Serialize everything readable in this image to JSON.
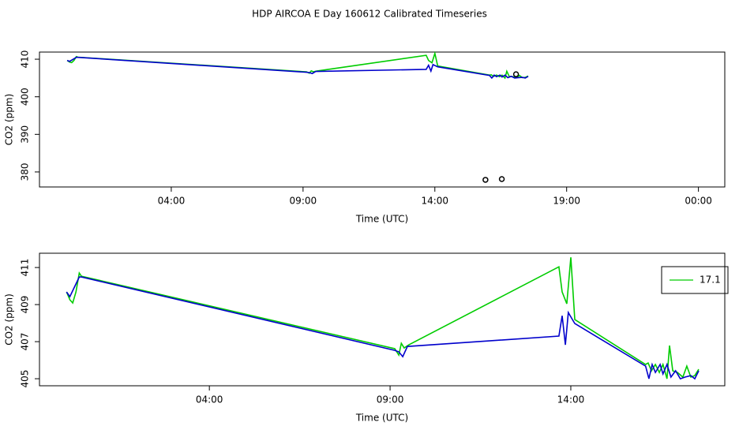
{
  "chart_data": [
    {
      "type": "line",
      "title": "HDP AIRCOA E  Day 160612  Calibrated Timeseries",
      "xlabel": "Time (UTC)",
      "ylabel": "CO2 (ppm)",
      "xlim": [
        -1,
        25
      ],
      "ylim": [
        376,
        411.9
      ],
      "xticks": [
        {
          "value": 4,
          "label": "04:00"
        },
        {
          "value": 9,
          "label": "09:00"
        },
        {
          "value": 14,
          "label": "14:00"
        },
        {
          "value": 19,
          "label": "19:00"
        },
        {
          "value": 24,
          "label": "00:00"
        }
      ],
      "yticks": [
        380,
        390,
        400,
        410
      ],
      "series": [
        {
          "color": "#00cc00",
          "x": [
            0.05,
            0.14,
            0.22,
            0.31,
            0.4,
            0.46,
            9.13,
            9.24,
            9.31,
            9.39,
            9.52,
            13.67,
            13.76,
            13.89,
            14.0,
            14.11,
            16.07,
            16.14,
            16.23,
            16.34,
            16.45,
            16.55,
            16.66,
            16.73,
            16.82,
            16.95,
            17.1,
            17.21,
            17.32,
            17.43,
            17.54
          ],
          "values": [
            409.68,
            409.26,
            409.09,
            409.68,
            410.7,
            410.53,
            406.62,
            406.28,
            406.91,
            406.66,
            406.83,
            411.04,
            409.68,
            409.04,
            411.55,
            408.19,
            405.77,
            405.85,
            405.43,
            405.77,
            405.34,
            405.77,
            405.0,
            406.79,
            405.43,
            405.34,
            405.09,
            405.68,
            405.09,
            405.17,
            405.51
          ]
        },
        {
          "color": "#0000cc",
          "x": [
            0.05,
            0.14,
            0.4,
            0.46,
            9.13,
            9.24,
            9.35,
            9.48,
            13.67,
            13.76,
            13.85,
            13.93,
            14.11,
            16.07,
            16.16,
            16.25,
            16.34,
            16.47,
            16.55,
            16.66,
            16.77,
            16.9,
            17.03,
            17.16,
            17.32,
            17.43,
            17.54
          ],
          "values": [
            409.68,
            409.43,
            410.49,
            410.49,
            406.53,
            406.45,
            406.19,
            406.74,
            407.3,
            408.4,
            406.83,
            408.57,
            407.98,
            405.68,
            405.0,
            405.77,
            405.34,
            405.77,
            405.26,
            405.77,
            405.09,
            405.43,
            405.0,
            405.09,
            405.17,
            405.0,
            405.43
          ]
        },
        {
          "color": "#000000",
          "style": "points",
          "x": [
            15.92,
            16.54,
            17.08
          ],
          "values": [
            377.9,
            378.1,
            406.0
          ]
        }
      ]
    },
    {
      "type": "line",
      "xlabel": "Time (UTC)",
      "ylabel": "CO2 (ppm)",
      "xlim": [
        -0.7,
        18.26
      ],
      "ylim": [
        404.62,
        411.77
      ],
      "xticks": [
        {
          "value": 4,
          "label": "04:00"
        },
        {
          "value": 9,
          "label": "09:00"
        },
        {
          "value": 14,
          "label": "14:00"
        }
      ],
      "yticks": [
        405,
        407,
        409,
        411
      ],
      "legend": "upper right",
      "series": [
        {
          "name": "17.1",
          "color": "#00cc00",
          "x": [
            0.05,
            0.14,
            0.22,
            0.31,
            0.4,
            0.46,
            9.13,
            9.24,
            9.31,
            9.39,
            9.52,
            13.67,
            13.76,
            13.89,
            14.0,
            14.11,
            16.07,
            16.14,
            16.23,
            16.34,
            16.45,
            16.55,
            16.66,
            16.73,
            16.82,
            16.95,
            17.1,
            17.21,
            17.32,
            17.43,
            17.54
          ],
          "values": [
            409.68,
            409.26,
            409.09,
            409.68,
            410.7,
            410.53,
            406.62,
            406.28,
            406.91,
            406.66,
            406.83,
            411.04,
            409.68,
            409.04,
            411.55,
            408.19,
            405.77,
            405.85,
            405.43,
            405.77,
            405.34,
            405.77,
            405.0,
            406.79,
            405.43,
            405.34,
            405.09,
            405.68,
            405.09,
            405.17,
            405.51
          ]
        },
        {
          "color": "#0000cc",
          "x": [
            0.05,
            0.14,
            0.4,
            0.46,
            9.13,
            9.24,
            9.35,
            9.48,
            13.67,
            13.76,
            13.85,
            13.93,
            14.11,
            16.07,
            16.16,
            16.25,
            16.34,
            16.47,
            16.55,
            16.66,
            16.77,
            16.9,
            17.03,
            17.16,
            17.32,
            17.43,
            17.54
          ],
          "values": [
            409.68,
            409.43,
            410.49,
            410.49,
            406.53,
            406.45,
            406.19,
            406.74,
            407.3,
            408.4,
            406.83,
            408.57,
            407.98,
            405.68,
            405.0,
            405.77,
            405.34,
            405.77,
            405.26,
            405.77,
            405.09,
            405.43,
            405.0,
            405.09,
            405.17,
            405.0,
            405.43
          ]
        }
      ]
    }
  ]
}
